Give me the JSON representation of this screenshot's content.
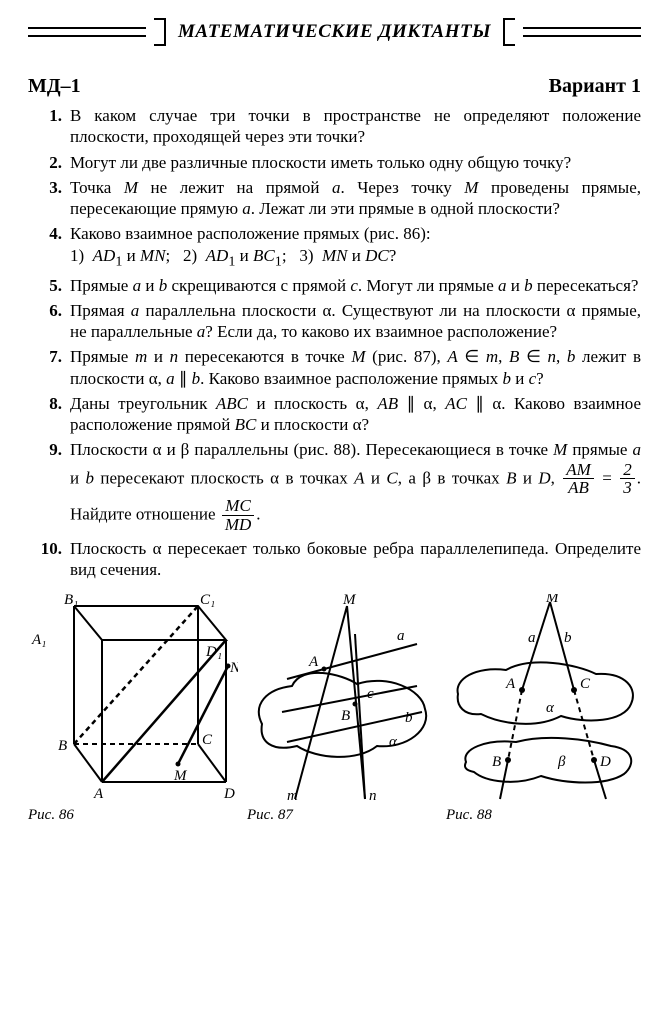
{
  "banner_title": "МАТЕМАТИЧЕСКИЕ ДИКТАНТЫ",
  "heading_left": "МД–1",
  "heading_right": "Вариант 1",
  "problems": [
    {
      "n": "1.",
      "html": "В каком случае три точки в пространстве не определяют положение плоскости, проходящей через эти точки?"
    },
    {
      "n": "2.",
      "html": "Могут ли две различные плоскости иметь только одну общую точку?"
    },
    {
      "n": "3.",
      "html": "Точка <i class='m'>M</i> не лежит на прямой <i class='m'>a</i>. Через точку <i class='m'>M</i> проведены прямые, пересекающие прямую <i class='m'>a</i>. Лежат ли эти прямые в одной плоскости?"
    },
    {
      "n": "4.",
      "html": "Каково взаимное расположение прямых (рис. 86):<br><span class='subline'>1)&nbsp; <i class='m'>AD</i><sub>1</sub> и <i class='m'>MN</i>;&nbsp;&nbsp; 2)&nbsp; <i class='m'>AD</i><sub>1</sub> и <i class='m'>BC</i><sub>1</sub>;&nbsp;&nbsp; 3)&nbsp; <i class='m'>MN</i> и <i class='m'>DC</i>?</span>"
    },
    {
      "n": "5.",
      "html": "Прямые <i class='m'>a</i> и <i class='m'>b</i> скрещиваются с прямой <i class='m'>c</i>. Могут ли прямые <i class='m'>a</i> и <i class='m'>b</i> пересекаться?"
    },
    {
      "n": "6.",
      "html": "Прямая <i class='m'>a</i> параллельна плоскости α. Существуют ли на плоскости α прямые, не параллельные <i class='m'>a</i>? Если да, то каково их взаимное расположение?"
    },
    {
      "n": "7.",
      "html": "Прямые <i class='m'>m</i> и <i class='m'>n</i> пересекаются в точке <i class='m'>M</i> (рис. 87), <i class='m'>A</i> ∈ <i class='m'>m</i>, <i class='m'>B</i> ∈ <i class='m'>n</i>, <i class='m'>b</i> лежит в плоскости α, <i class='m'>a</i> ∥ <i class='m'>b</i>. Каково взаимное расположение прямых <i class='m'>b</i> и <i class='m'>c</i>?"
    },
    {
      "n": "8.",
      "html": "Даны треугольник <i class='m'>ABC</i> и плоскость α, <i class='m'>AB</i> ∥ α, <i class='m'>AC</i> ∥ α. Каково взаимное расположение прямой <i class='m'>BC</i> и плоскости α?"
    },
    {
      "n": "9.",
      "html": "Плоскости α и β параллельны (рис. 88). Пересекающиеся в точке <i class='m'>M</i> прямые <i class='m'>a</i> и <i class='m'>b</i> пересекают плоскость α в точках <i class='m'>A</i> и <i class='m'>C</i>, а β в точках <i class='m'>B</i> и <i class='m'>D</i>, <span class='frac'><span class='fn'>AM</span><span class='fd'>AB</span></span> = <span class='frac'><span class='fn'>2</span><span class='fd'>3</span></span>. Найдите отношение <span class='frac'><span class='fn'>MC</span><span class='fd'>MD</span></span>."
    },
    {
      "n": "10.",
      "html": "Плоскость α пересекает только боковые ребра параллелепипеда. Определите вид сечения."
    }
  ],
  "fig86": {
    "caption": "Рис. 86",
    "labels": {
      "A": "A",
      "B": "B",
      "C": "C",
      "D": "D",
      "A1": "A₁",
      "B1": "B₁",
      "C1": "C₁",
      "D1": "D₁",
      "M": "M",
      "N": "N"
    }
  },
  "fig87": {
    "caption": "Рис. 87",
    "labels": {
      "M": "M",
      "A": "A",
      "B": "B",
      "a": "a",
      "b": "b",
      "c": "c",
      "m": "m",
      "n": "n",
      "alpha": "α"
    }
  },
  "fig88": {
    "caption": "Рис. 88",
    "labels": {
      "M": "M",
      "A": "A",
      "B": "B",
      "C": "C",
      "D": "D",
      "a": "a",
      "b": "b",
      "alpha": "α",
      "beta": "β"
    }
  },
  "style": {
    "stroke": "#000000",
    "stroke_width": 2,
    "dash": "5,4",
    "font_size_label": 15
  }
}
